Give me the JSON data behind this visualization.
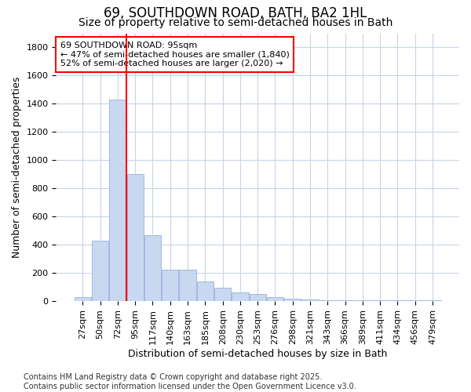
{
  "title": "69, SOUTHDOWN ROAD, BATH, BA2 1HL",
  "subtitle": "Size of property relative to semi-detached houses in Bath",
  "xlabel": "Distribution of semi-detached houses by size in Bath",
  "ylabel": "Number of semi-detached properties",
  "categories": [
    "27sqm",
    "50sqm",
    "72sqm",
    "95sqm",
    "117sqm",
    "140sqm",
    "163sqm",
    "185sqm",
    "208sqm",
    "230sqm",
    "253sqm",
    "276sqm",
    "298sqm",
    "321sqm",
    "343sqm",
    "366sqm",
    "389sqm",
    "411sqm",
    "434sqm",
    "456sqm",
    "479sqm"
  ],
  "values": [
    30,
    430,
    1430,
    900,
    470,
    225,
    225,
    140,
    95,
    60,
    50,
    30,
    15,
    10,
    5,
    5,
    5,
    5,
    5,
    5,
    5
  ],
  "bar_color": "#c8d8f0",
  "bar_edge_color": "#a0b8e0",
  "vline_color": "red",
  "vline_index": 3,
  "annotation_text": "69 SOUTHDOWN ROAD: 95sqm\n← 47% of semi-detached houses are smaller (1,840)\n52% of semi-detached houses are larger (2,020) →",
  "annotation_box_color": "white",
  "annotation_box_edge_color": "red",
  "footer": "Contains HM Land Registry data © Crown copyright and database right 2025.\nContains public sector information licensed under the Open Government Licence v3.0.",
  "ylim": [
    0,
    1900
  ],
  "yticks": [
    0,
    200,
    400,
    600,
    800,
    1000,
    1200,
    1400,
    1600,
    1800
  ],
  "background_color": "#ffffff",
  "plot_bg_color": "#ffffff",
  "grid_color": "#c8d4e8",
  "title_fontsize": 12,
  "subtitle_fontsize": 10,
  "axis_label_fontsize": 9,
  "tick_fontsize": 8,
  "annotation_fontsize": 8,
  "footer_fontsize": 7
}
